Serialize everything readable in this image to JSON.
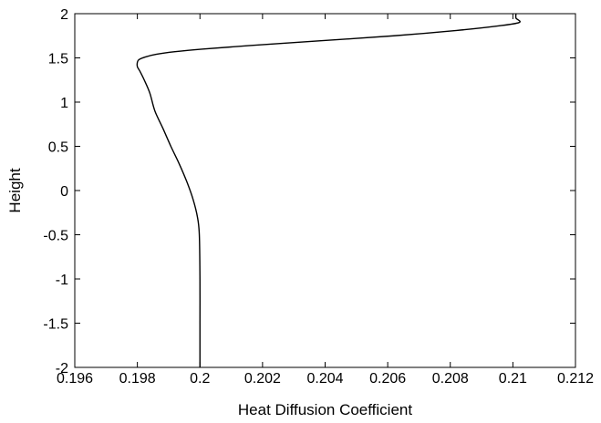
{
  "chart_data": {
    "type": "line",
    "xlabel": "Heat Diffusion Coefficient",
    "ylabel": "Height",
    "xlim": [
      0.196,
      0.212
    ],
    "ylim": [
      -2,
      2
    ],
    "xticks": [
      0.196,
      0.198,
      0.2,
      0.202,
      0.204,
      0.206,
      0.208,
      0.21,
      0.212
    ],
    "xtick_labels": [
      "0.196",
      "0.198",
      "0.2",
      "0.202",
      "0.204",
      "0.206",
      "0.208",
      "0.21",
      "0.212"
    ],
    "yticks": [
      2,
      1.5,
      1,
      0.5,
      0,
      -0.5,
      -1,
      -1.5,
      -2
    ],
    "ytick_labels": [
      "2",
      "1.5",
      "1",
      "0.5",
      "0",
      "-0.5",
      "-1",
      "-1.5",
      "-2"
    ],
    "grid": false,
    "line_color": "#000000",
    "series": [
      {
        "x": [
          0.2,
          0.2,
          0.2,
          0.19998,
          0.19992,
          0.19978,
          0.19958,
          0.19934,
          0.19907,
          0.19882,
          0.19856,
          0.1984,
          0.19822,
          0.19808,
          0.198,
          0.198,
          0.19805,
          0.19825,
          0.1986,
          0.1992,
          0.2001,
          0.2016,
          0.2037,
          0.2062,
          0.2082,
          0.2095,
          0.2102,
          0.2101,
          0.2101
        ],
        "y": [
          -2.0,
          -1.5,
          -1.0,
          -0.5,
          -0.3,
          -0.1,
          0.1,
          0.3,
          0.5,
          0.7,
          0.9,
          1.1,
          1.25,
          1.35,
          1.4,
          1.45,
          1.48,
          1.51,
          1.54,
          1.57,
          1.6,
          1.64,
          1.69,
          1.75,
          1.81,
          1.86,
          1.9,
          1.95,
          2.0
        ]
      }
    ]
  }
}
